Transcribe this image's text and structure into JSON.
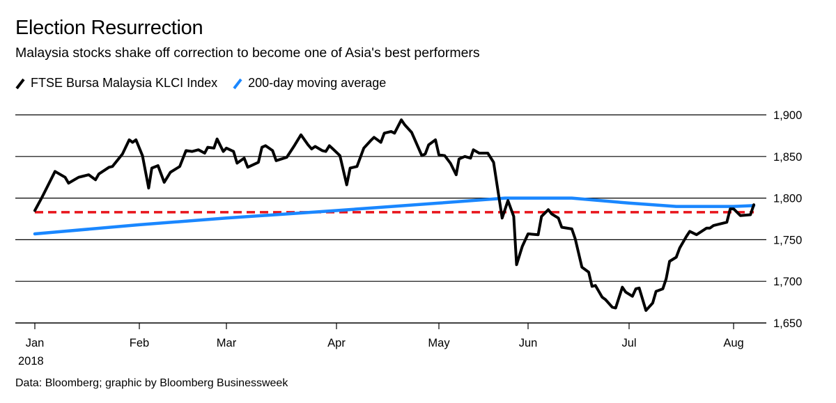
{
  "title": "Election Resurrection",
  "subtitle": "Malaysia stocks shake off correction to become one of Asia's best performers",
  "legend": [
    {
      "label": "FTSE Bursa Malaysia KLCI Index",
      "color": "#000000"
    },
    {
      "label": "200-day moving average",
      "color": "#1a87ff"
    }
  ],
  "source": "Data: Bloomberg; graphic by Bloomberg Businessweek",
  "chart_data": {
    "type": "line",
    "title": "Election Resurrection",
    "xlabel": "",
    "ylabel": "",
    "ylim": [
      1650,
      1900
    ],
    "y_ticks": [
      1650,
      1700,
      1750,
      1800,
      1850,
      1900
    ],
    "y_tick_labels": [
      "1,650",
      "1,700",
      "1,750",
      "1,800",
      "1,850",
      "1,900"
    ],
    "y_axis_side": "right",
    "x_ticks": [
      "2018-01-01",
      "2018-02-01",
      "2018-03-01",
      "2018-04-01",
      "2018-05-01",
      "2018-06-01",
      "2018-07-01",
      "2018-08-01"
    ],
    "x_tick_labels": [
      "Jan",
      "Feb",
      "Mar",
      "Apr",
      "May",
      "Jun",
      "Jul",
      "Aug"
    ],
    "x_year_label": "2018",
    "grid": "horizontal",
    "legend_placement": "top-left",
    "reference_line": {
      "value": 1783,
      "color": "#e8141b",
      "style": "dashed",
      "from": "2018-01-01",
      "to": "2018-08-07"
    },
    "series": [
      {
        "name": "FTSE Bursa Malaysia KLCI Index",
        "color": "#000000",
        "points": [
          [
            "2018-01-01",
            1785
          ],
          [
            "2018-01-03",
            1800
          ],
          [
            "2018-01-07",
            1832
          ],
          [
            "2018-01-10",
            1825
          ],
          [
            "2018-01-11",
            1818
          ],
          [
            "2018-01-14",
            1825
          ],
          [
            "2018-01-15",
            1826
          ],
          [
            "2018-01-17",
            1828
          ],
          [
            "2018-01-19",
            1822
          ],
          [
            "2018-01-20",
            1829
          ],
          [
            "2018-01-23",
            1837
          ],
          [
            "2018-01-24",
            1838
          ],
          [
            "2018-01-27",
            1853
          ],
          [
            "2018-01-29",
            1870
          ],
          [
            "2018-01-30",
            1867
          ],
          [
            "2018-01-31",
            1870
          ],
          [
            "2018-02-02",
            1851
          ],
          [
            "2018-02-04",
            1812
          ],
          [
            "2018-02-05",
            1836
          ],
          [
            "2018-02-07",
            1839
          ],
          [
            "2018-02-09",
            1819
          ],
          [
            "2018-02-11",
            1831
          ],
          [
            "2018-02-14",
            1838
          ],
          [
            "2018-02-16",
            1857
          ],
          [
            "2018-02-18",
            1856
          ],
          [
            "2018-02-20",
            1858
          ],
          [
            "2018-02-22",
            1854
          ],
          [
            "2018-02-23",
            1861
          ],
          [
            "2018-02-25",
            1860
          ],
          [
            "2018-02-26",
            1871
          ],
          [
            "2018-02-28",
            1856
          ],
          [
            "2018-03-01",
            1860
          ],
          [
            "2018-03-03",
            1856
          ],
          [
            "2018-03-04",
            1842
          ],
          [
            "2018-03-06",
            1848
          ],
          [
            "2018-03-07",
            1837
          ],
          [
            "2018-03-10",
            1843
          ],
          [
            "2018-03-11",
            1861
          ],
          [
            "2018-03-12",
            1863
          ],
          [
            "2018-03-14",
            1857
          ],
          [
            "2018-03-15",
            1845
          ],
          [
            "2018-03-18",
            1849
          ],
          [
            "2018-03-20",
            1862
          ],
          [
            "2018-03-22",
            1876
          ],
          [
            "2018-03-24",
            1864
          ],
          [
            "2018-03-25",
            1859
          ],
          [
            "2018-03-26",
            1862
          ],
          [
            "2018-03-28",
            1857
          ],
          [
            "2018-03-29",
            1856
          ],
          [
            "2018-03-30",
            1863
          ],
          [
            "2018-03-31",
            1859
          ],
          [
            "2018-04-02",
            1851
          ],
          [
            "2018-04-04",
            1816
          ],
          [
            "2018-04-05",
            1836
          ],
          [
            "2018-04-07",
            1838
          ],
          [
            "2018-04-09",
            1860
          ],
          [
            "2018-04-11",
            1869
          ],
          [
            "2018-04-12",
            1873
          ],
          [
            "2018-04-14",
            1867
          ],
          [
            "2018-04-15",
            1878
          ],
          [
            "2018-04-17",
            1880
          ],
          [
            "2018-04-18",
            1878
          ],
          [
            "2018-04-20",
            1894
          ],
          [
            "2018-04-21",
            1888
          ],
          [
            "2018-04-23",
            1879
          ],
          [
            "2018-04-26",
            1851
          ],
          [
            "2018-04-27",
            1853
          ],
          [
            "2018-04-28",
            1864
          ],
          [
            "2018-04-30",
            1870
          ],
          [
            "2018-05-01",
            1852
          ],
          [
            "2018-05-03",
            1851
          ],
          [
            "2018-05-05",
            1842
          ],
          [
            "2018-05-07",
            1828
          ],
          [
            "2018-05-08",
            1847
          ],
          [
            "2018-05-10",
            1850
          ],
          [
            "2018-05-12",
            1848
          ],
          [
            "2018-05-13",
            1858
          ],
          [
            "2018-05-15",
            1854
          ],
          [
            "2018-05-18",
            1854
          ],
          [
            "2018-05-20",
            1843
          ],
          [
            "2018-05-23",
            1776
          ],
          [
            "2018-05-25",
            1797
          ],
          [
            "2018-05-27",
            1778
          ],
          [
            "2018-05-28",
            1720
          ],
          [
            "2018-05-30",
            1742
          ],
          [
            "2018-06-01",
            1757
          ],
          [
            "2018-06-04",
            1756
          ],
          [
            "2018-06-05",
            1778
          ],
          [
            "2018-06-07",
            1786
          ],
          [
            "2018-06-08",
            1781
          ],
          [
            "2018-06-10",
            1776
          ],
          [
            "2018-06-11",
            1765
          ],
          [
            "2018-06-14",
            1763
          ],
          [
            "2018-06-15",
            1751
          ],
          [
            "2018-06-17",
            1717
          ],
          [
            "2018-06-19",
            1711
          ],
          [
            "2018-06-20",
            1694
          ],
          [
            "2018-06-21",
            1695
          ],
          [
            "2018-06-23",
            1681
          ],
          [
            "2018-06-24",
            1678
          ],
          [
            "2018-06-26",
            1669
          ],
          [
            "2018-06-27",
            1668
          ],
          [
            "2018-06-29",
            1693
          ],
          [
            "2018-06-30",
            1687
          ],
          [
            "2018-07-02",
            1682
          ],
          [
            "2018-07-03",
            1691
          ],
          [
            "2018-07-04",
            1692
          ],
          [
            "2018-07-06",
            1665
          ],
          [
            "2018-07-08",
            1674
          ],
          [
            "2018-07-09",
            1688
          ],
          [
            "2018-07-11",
            1691
          ],
          [
            "2018-07-12",
            1703
          ],
          [
            "2018-07-13",
            1724
          ],
          [
            "2018-07-15",
            1729
          ],
          [
            "2018-07-16",
            1740
          ],
          [
            "2018-07-18",
            1754
          ],
          [
            "2018-07-19",
            1760
          ],
          [
            "2018-07-21",
            1756
          ],
          [
            "2018-07-24",
            1764
          ],
          [
            "2018-07-25",
            1764
          ],
          [
            "2018-07-26",
            1767
          ],
          [
            "2018-07-28",
            1769
          ],
          [
            "2018-07-30",
            1771
          ],
          [
            "2018-07-31",
            1787
          ],
          [
            "2018-08-01",
            1787
          ],
          [
            "2018-08-03",
            1779
          ],
          [
            "2018-08-06",
            1780
          ],
          [
            "2018-08-07",
            1792
          ]
        ]
      },
      {
        "name": "200-day moving average",
        "color": "#1a87ff",
        "points": [
          [
            "2018-01-01",
            1757
          ],
          [
            "2018-02-01",
            1768
          ],
          [
            "2018-03-01",
            1776
          ],
          [
            "2018-04-01",
            1785
          ],
          [
            "2018-05-01",
            1794
          ],
          [
            "2018-05-24",
            1800
          ],
          [
            "2018-06-14",
            1800
          ],
          [
            "2018-07-01",
            1794
          ],
          [
            "2018-07-15",
            1790
          ],
          [
            "2018-08-01",
            1790
          ],
          [
            "2018-08-07",
            1791
          ]
        ]
      }
    ]
  }
}
